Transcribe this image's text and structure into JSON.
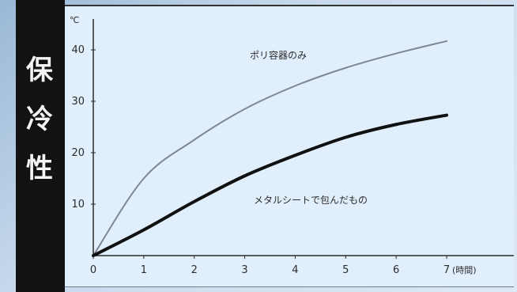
{
  "chart_data": {
    "type": "line",
    "title": "",
    "ylabel": "保冷性",
    "ylabel_chars": [
      "保",
      "冷",
      "性"
    ],
    "xlabel": "",
    "x": [
      0,
      1,
      2,
      3,
      4,
      5,
      6,
      7
    ],
    "x_tick_labels": [
      "0",
      "1",
      "2",
      "3",
      "4",
      "5",
      "6",
      "7"
    ],
    "x_unit": "(時間)",
    "y_tick_values": [
      10,
      20,
      30,
      40
    ],
    "y_tick_labels": [
      "10",
      "20",
      "30",
      "40"
    ],
    "y_unit": "℃",
    "xlim": [
      0,
      7
    ],
    "ylim": [
      0,
      46
    ],
    "series": [
      {
        "name": "ポリ容器のみ",
        "values": [
          0,
          15,
          22.5,
          28.5,
          33,
          36.5,
          39.3,
          41.7
        ],
        "color": "#7c8896"
      },
      {
        "name": "メタルシートで包んだもの",
        "values": [
          0,
          5,
          10.5,
          15.5,
          19.5,
          23,
          25.5,
          27.3
        ],
        "color": "#111111"
      }
    ]
  }
}
